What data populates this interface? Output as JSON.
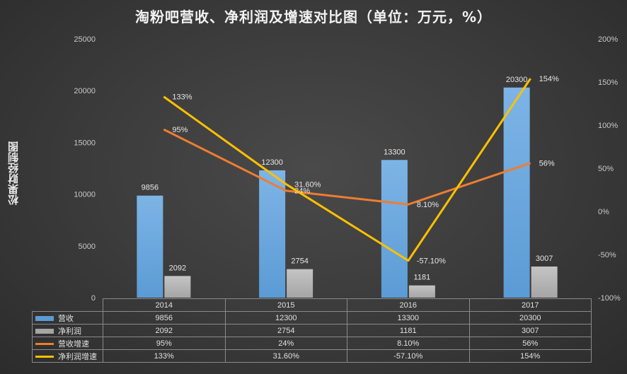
{
  "title": "淘粉吧营收、净利润及增速对比图（单位：万元，%）",
  "side_label": "松果财经制图",
  "colors": {
    "revenue": "#5b9bd5",
    "profit": "#a5a5a5",
    "revenue_growth": "#ed7d31",
    "profit_growth": "#ffc000"
  },
  "chart_data": {
    "type": "bar",
    "categories": [
      "2014",
      "2015",
      "2016",
      "2017"
    ],
    "left_axis": {
      "min": 0,
      "max": 25000,
      "step": 5000,
      "ticks": [
        "0",
        "5000",
        "10000",
        "15000",
        "20000",
        "25000"
      ]
    },
    "right_axis": {
      "min": -100,
      "max": 200,
      "step": 50,
      "ticks": [
        "-100%",
        "-50%",
        "0%",
        "50%",
        "100%",
        "150%",
        "200%"
      ]
    },
    "series": [
      {
        "name": "营收",
        "kind": "bar",
        "axis": "left",
        "values": [
          9856,
          12300,
          13300,
          20300
        ],
        "labels": [
          "9856",
          "12300",
          "13300",
          "20300"
        ]
      },
      {
        "name": "净利润",
        "kind": "bar",
        "axis": "left",
        "values": [
          2092,
          2754,
          1181,
          3007
        ],
        "labels": [
          "2092",
          "2754",
          "1181",
          "3007"
        ]
      },
      {
        "name": "营收增速",
        "kind": "line",
        "axis": "right",
        "values": [
          95,
          24,
          8.1,
          56
        ],
        "labels": [
          "95%",
          "24%",
          "8.10%",
          "56%"
        ]
      },
      {
        "name": "净利润增速",
        "kind": "line",
        "axis": "right",
        "values": [
          133,
          31.6,
          -57.1,
          154
        ],
        "labels": [
          "133%",
          "31.60%",
          "-57.10%",
          "154%"
        ]
      }
    ],
    "data_table": true,
    "grid": false
  }
}
